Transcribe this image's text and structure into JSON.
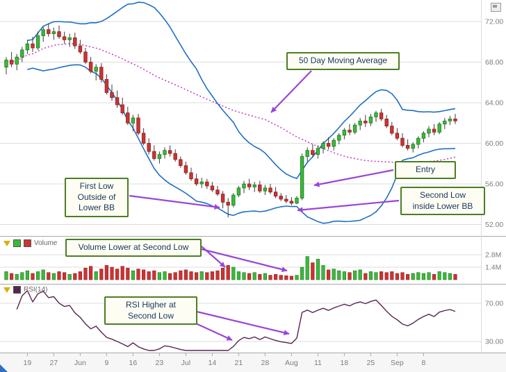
{
  "colors": {
    "up": "#3cb83c",
    "up_border": "#1c7a1c",
    "down": "#cc3333",
    "down_border": "#8f1f1f",
    "wick": "#3a3a3a",
    "bollinger": "#1e6fc4",
    "sma": "#c435c4",
    "rsi": "#55254f",
    "arrow": "#9b45d6",
    "grid": "#dcdcdc",
    "separator": "#a8a8a8",
    "axis_text": "#7c7c7c",
    "annotation_border": "#4c7d21",
    "annotation_bg": "#fdfdf4",
    "annotation_text": "#17365d"
  },
  "chart_data": {
    "type": "candlestick",
    "panels": [
      "price-with-bollinger-and-sma",
      "volume",
      "rsi"
    ],
    "legends": {
      "volume": "Volume",
      "rsi": "RSI(14)"
    },
    "price_axis_ticks": [
      {
        "value": 72,
        "label": "72.00"
      },
      {
        "value": 68,
        "label": "68.00"
      },
      {
        "value": 64,
        "label": "64.00"
      },
      {
        "value": 60,
        "label": "60.00"
      },
      {
        "value": 56,
        "label": "56.00"
      },
      {
        "value": 52,
        "label": "52.00"
      }
    ],
    "volume_axis_ticks": [
      {
        "value": 2.8,
        "label": "2.8M"
      },
      {
        "value": 1.4,
        "label": "1.4M"
      }
    ],
    "rsi_axis_ticks": [
      {
        "value": 70,
        "label": "70.00"
      },
      {
        "value": 30,
        "label": "30.00"
      }
    ],
    "x_ticks": [
      {
        "label": "19",
        "index": 4
      },
      {
        "label": "27",
        "index": 9
      },
      {
        "label": "Jun",
        "index": 14
      },
      {
        "label": "9",
        "index": 19
      },
      {
        "label": "16",
        "index": 24
      },
      {
        "label": "23",
        "index": 29
      },
      {
        "label": "Jul",
        "index": 34
      },
      {
        "label": "14",
        "index": 39
      },
      {
        "label": "21",
        "index": 44
      },
      {
        "label": "28",
        "index": 49
      },
      {
        "label": "Aug",
        "index": 54
      },
      {
        "label": "11",
        "index": 59
      },
      {
        "label": "18",
        "index": 64
      },
      {
        "label": "25",
        "index": 69
      },
      {
        "label": "Sep",
        "index": 74
      },
      {
        "label": "8",
        "index": 79
      }
    ],
    "indicators": {
      "sma_period": 50,
      "bollinger_period": 20,
      "bollinger_stddev": 2,
      "rsi_period": 14
    },
    "candles_ohlc": [
      [
        67.5,
        68.5,
        66.8,
        68.2
      ],
      [
        68.2,
        69.0,
        67.5,
        67.8
      ],
      [
        67.8,
        68.8,
        67.2,
        68.5
      ],
      [
        68.5,
        69.5,
        68.0,
        69.2
      ],
      [
        69.2,
        70.2,
        68.8,
        69.8
      ],
      [
        69.8,
        70.5,
        69.0,
        69.4
      ],
      [
        69.4,
        71.0,
        69.2,
        70.6
      ],
      [
        70.6,
        71.5,
        70.0,
        71.2
      ],
      [
        71.2,
        71.8,
        70.5,
        70.8
      ],
      [
        70.8,
        71.4,
        70.2,
        71.0
      ],
      [
        71.0,
        71.6,
        70.3,
        70.5
      ],
      [
        70.5,
        71.0,
        69.8,
        70.2
      ],
      [
        70.2,
        70.8,
        69.5,
        70.4
      ],
      [
        70.4,
        70.9,
        69.3,
        69.6
      ],
      [
        69.6,
        70.2,
        68.8,
        69.0
      ],
      [
        69.0,
        69.4,
        67.8,
        68.0
      ],
      [
        68.0,
        68.5,
        66.9,
        67.1
      ],
      [
        67.1,
        67.8,
        66.2,
        67.5
      ],
      [
        67.5,
        67.9,
        66.0,
        66.3
      ],
      [
        66.3,
        66.8,
        64.8,
        65.0
      ],
      [
        65.0,
        65.8,
        64.2,
        64.5
      ],
      [
        64.5,
        65.2,
        63.5,
        63.8
      ],
      [
        63.8,
        64.5,
        62.8,
        63.0
      ],
      [
        63.0,
        63.6,
        61.8,
        62.0
      ],
      [
        62.0,
        62.8,
        61.2,
        62.5
      ],
      [
        62.5,
        62.9,
        60.8,
        61.0
      ],
      [
        61.0,
        61.5,
        59.8,
        60.0
      ],
      [
        60.0,
        60.5,
        58.9,
        59.2
      ],
      [
        59.2,
        59.8,
        58.3,
        58.5
      ],
      [
        58.5,
        59.2,
        58.0,
        58.9
      ],
      [
        58.9,
        59.6,
        58.5,
        59.3
      ],
      [
        59.3,
        59.8,
        58.7,
        59.0
      ],
      [
        59.0,
        59.4,
        58.2,
        58.4
      ],
      [
        58.4,
        58.7,
        57.6,
        57.8
      ],
      [
        57.8,
        58.2,
        56.9,
        57.1
      ],
      [
        57.1,
        57.6,
        56.3,
        56.5
      ],
      [
        56.5,
        57.0,
        55.8,
        56.0
      ],
      [
        56.0,
        56.6,
        55.6,
        56.2
      ],
      [
        56.2,
        56.5,
        55.5,
        55.8
      ],
      [
        55.8,
        56.2,
        55.2,
        55.4
      ],
      [
        55.4,
        55.8,
        54.8,
        55.0
      ],
      [
        55.0,
        55.3,
        53.6,
        54.2
      ],
      [
        54.2,
        54.6,
        52.7,
        53.9
      ],
      [
        53.9,
        55.1,
        53.7,
        54.9
      ],
      [
        54.9,
        55.8,
        54.7,
        55.6
      ],
      [
        55.6,
        56.3,
        55.1,
        56.0
      ],
      [
        56.0,
        56.5,
        55.4,
        55.7
      ],
      [
        55.7,
        56.2,
        55.2,
        55.9
      ],
      [
        55.9,
        56.3,
        55.1,
        55.3
      ],
      [
        55.3,
        55.9,
        54.9,
        55.6
      ],
      [
        55.6,
        56.0,
        55.0,
        55.2
      ],
      [
        55.2,
        55.7,
        54.6,
        54.8
      ],
      [
        54.8,
        55.1,
        54.3,
        54.5
      ],
      [
        54.5,
        54.9,
        54.1,
        54.3
      ],
      [
        54.3,
        54.7,
        53.9,
        54.1
      ],
      [
        54.1,
        54.8,
        54.0,
        54.6
      ],
      [
        54.6,
        59.0,
        54.4,
        58.7
      ],
      [
        58.7,
        59.6,
        58.2,
        59.3
      ],
      [
        59.3,
        59.9,
        58.6,
        58.9
      ],
      [
        58.9,
        59.8,
        58.5,
        59.5
      ],
      [
        59.5,
        60.2,
        59.0,
        60.0
      ],
      [
        60.0,
        60.6,
        59.4,
        59.7
      ],
      [
        59.7,
        60.5,
        59.3,
        60.3
      ],
      [
        60.3,
        61.0,
        59.9,
        60.8
      ],
      [
        60.8,
        61.5,
        60.4,
        61.3
      ],
      [
        61.3,
        61.9,
        60.8,
        61.1
      ],
      [
        61.1,
        62.0,
        60.9,
        61.8
      ],
      [
        61.8,
        62.5,
        61.3,
        62.2
      ],
      [
        62.2,
        62.8,
        61.6,
        62.0
      ],
      [
        62.0,
        62.9,
        61.7,
        62.6
      ],
      [
        62.6,
        63.2,
        62.1,
        63.0
      ],
      [
        63.0,
        63.4,
        62.2,
        62.4
      ],
      [
        62.4,
        62.8,
        61.5,
        61.7
      ],
      [
        61.7,
        62.1,
        60.8,
        61.0
      ],
      [
        61.0,
        61.5,
        60.3,
        60.5
      ],
      [
        60.5,
        61.0,
        59.6,
        59.8
      ],
      [
        59.8,
        60.4,
        59.3,
        59.5
      ],
      [
        59.5,
        60.1,
        59.1,
        59.9
      ],
      [
        59.9,
        60.7,
        59.5,
        60.5
      ],
      [
        60.5,
        61.2,
        60.1,
        61.0
      ],
      [
        61.0,
        61.7,
        60.6,
        61.4
      ],
      [
        61.4,
        61.9,
        60.8,
        61.1
      ],
      [
        61.1,
        62.1,
        60.9,
        61.9
      ],
      [
        61.9,
        62.5,
        61.4,
        62.2
      ],
      [
        62.2,
        62.7,
        61.8,
        62.4
      ],
      [
        62.4,
        62.9,
        61.9,
        62.2
      ]
    ],
    "volume_millions": [
      0.9,
      0.7,
      0.6,
      0.8,
      1.0,
      0.7,
      0.9,
      1.1,
      0.8,
      0.7,
      0.9,
      0.8,
      0.6,
      0.7,
      0.9,
      1.3,
      1.5,
      0.9,
      1.2,
      1.6,
      1.4,
      1.2,
      1.5,
      1.3,
      1.0,
      1.2,
      1.1,
      0.9,
      1.0,
      0.8,
      0.9,
      0.7,
      0.8,
      1.0,
      1.1,
      0.9,
      0.8,
      0.9,
      0.8,
      0.9,
      1.0,
      1.3,
      1.6,
      1.4,
      0.9,
      0.8,
      0.7,
      0.8,
      0.6,
      0.7,
      0.5,
      0.6,
      0.5,
      0.45,
      0.4,
      0.5,
      1.4,
      2.6,
      1.9,
      2.3,
      1.6,
      1.1,
      1.2,
      1.0,
      0.9,
      0.8,
      1.0,
      1.1,
      0.7,
      0.9,
      0.8,
      0.9,
      0.8,
      0.9,
      0.7,
      0.8,
      0.6,
      0.7,
      0.8,
      0.7,
      0.8,
      0.6,
      0.9,
      0.8,
      0.7,
      0.6
    ]
  },
  "annotations": {
    "moving_average_note": "50 Day Moving Average",
    "first_low_note": "First Low\nOutside of\nLower BB",
    "entry_note": "Entry",
    "second_low_note": "Second Low\ninside Lower BB",
    "volume_note": "Volume Lower at Second Low",
    "rsi_note": "RSI Higher at\nSecond Low"
  }
}
